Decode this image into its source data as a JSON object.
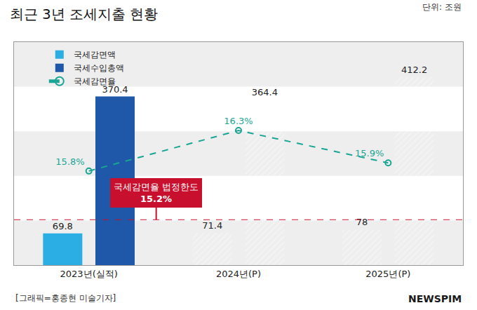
{
  "chart_data": {
    "type": "bar",
    "title": "최근 3년 조세지출 현황",
    "subtitle": "단위: 조원",
    "source": "[그래픽=홍종현 미술기자]",
    "logo": "NEWSPIM",
    "categories": [
      "2023년(실적)",
      "2024년(P)",
      "2025년(P)"
    ],
    "series": [
      {
        "name": "국세감면액",
        "color": "#2aaee4",
        "values": [
          69.8,
          71.4,
          78
        ]
      },
      {
        "name": "국세수입총액",
        "color": "#1f58a8",
        "values": [
          370.4,
          364.4,
          412.2
        ]
      },
      {
        "name": "국세감면율",
        "type": "line",
        "axis": "y2",
        "color": "#1aa595",
        "line_style": "dashed",
        "marker": "circle",
        "values": [
          15.8,
          16.3,
          15.9
        ],
        "value_labels": [
          "15.8%",
          "16.3%",
          "15.9%"
        ]
      }
    ],
    "annotations": [
      {
        "text": "국세감면율 법정한도",
        "value": 15.2,
        "value_label": "15.2%",
        "axis": "y2",
        "color": "#c8102e"
      }
    ],
    "ylim": [
      0,
      490
    ],
    "yticks": [],
    "y2lim": [
      14.64,
      17.39
    ],
    "y2ticks": [],
    "tick_labels": "x",
    "grid": false,
    "legend": "top left",
    "data_labels": true
  }
}
